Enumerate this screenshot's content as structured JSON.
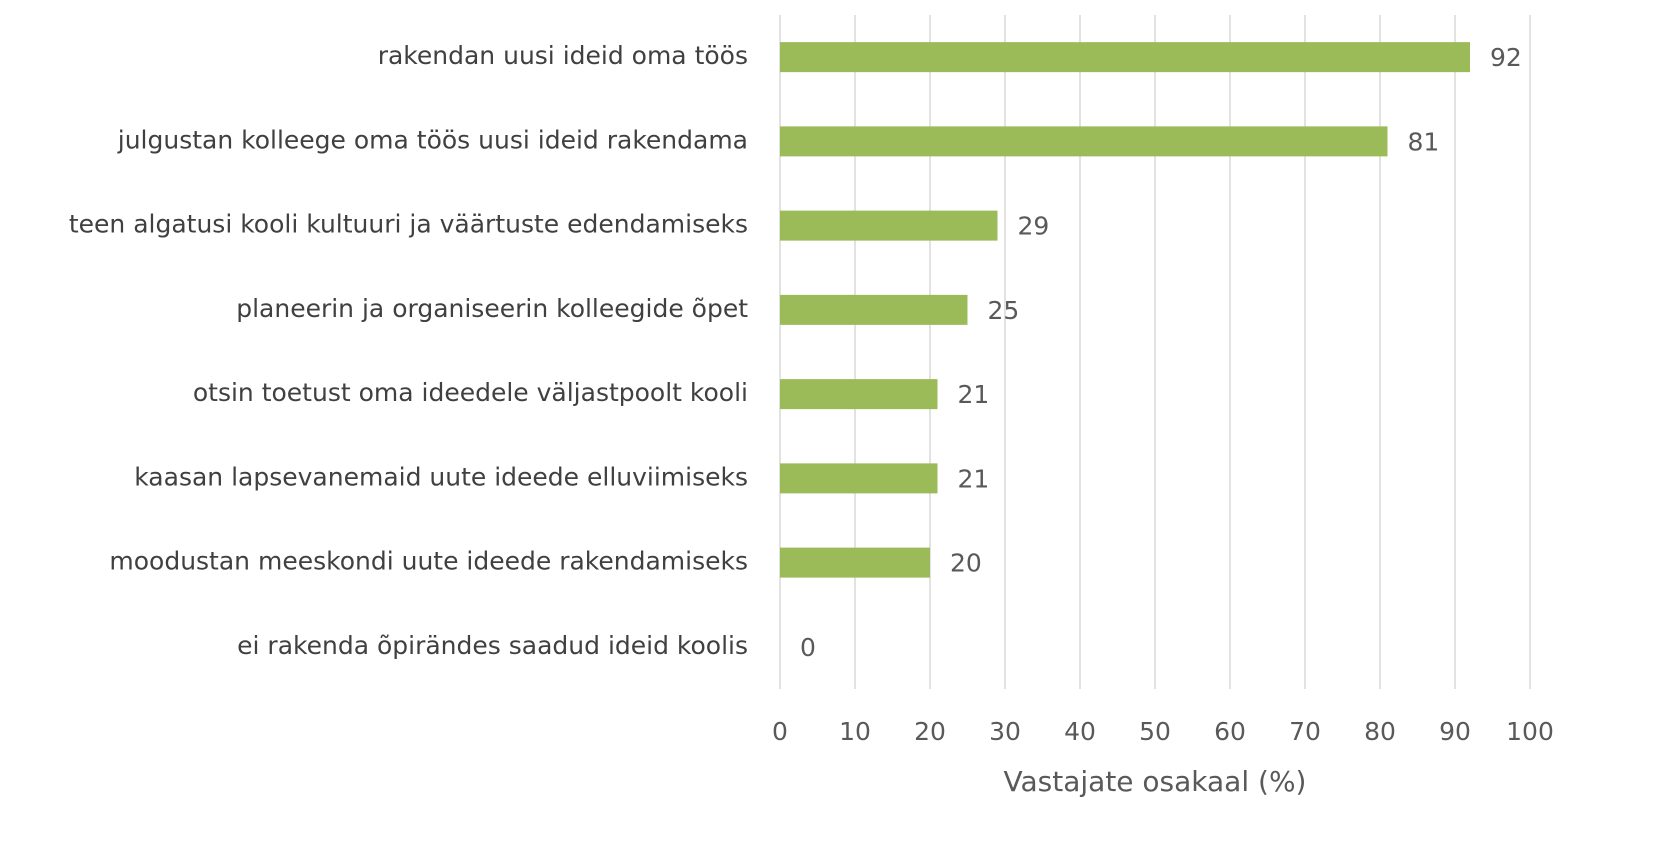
{
  "chart_data": {
    "type": "barh",
    "categories": [
      "rakendan uusi ideid oma töös",
      "julgustan kolleege oma töös uusi ideid rakendama",
      "teen algatusi kooli kultuuri ja väärtuste edendamiseks",
      "planeerin ja organiseerin kolleegide õpet",
      "otsin toetust oma ideedele väljastpoolt kooli",
      "kaasan lapsevanemaid uute ideede elluviimiseks",
      "moodustan meeskondi uute ideede rakendamiseks",
      "ei rakenda õpirändes saadud ideid koolis"
    ],
    "values": [
      92,
      81,
      29,
      25,
      21,
      21,
      20,
      0
    ],
    "color": "#9bbb59",
    "xlabel": "Vastajate osakaal (%)",
    "xlim": [
      0,
      100
    ],
    "xticks": [
      0,
      10,
      20,
      30,
      40,
      50,
      60,
      70,
      80,
      90,
      100
    ],
    "grid": true
  }
}
